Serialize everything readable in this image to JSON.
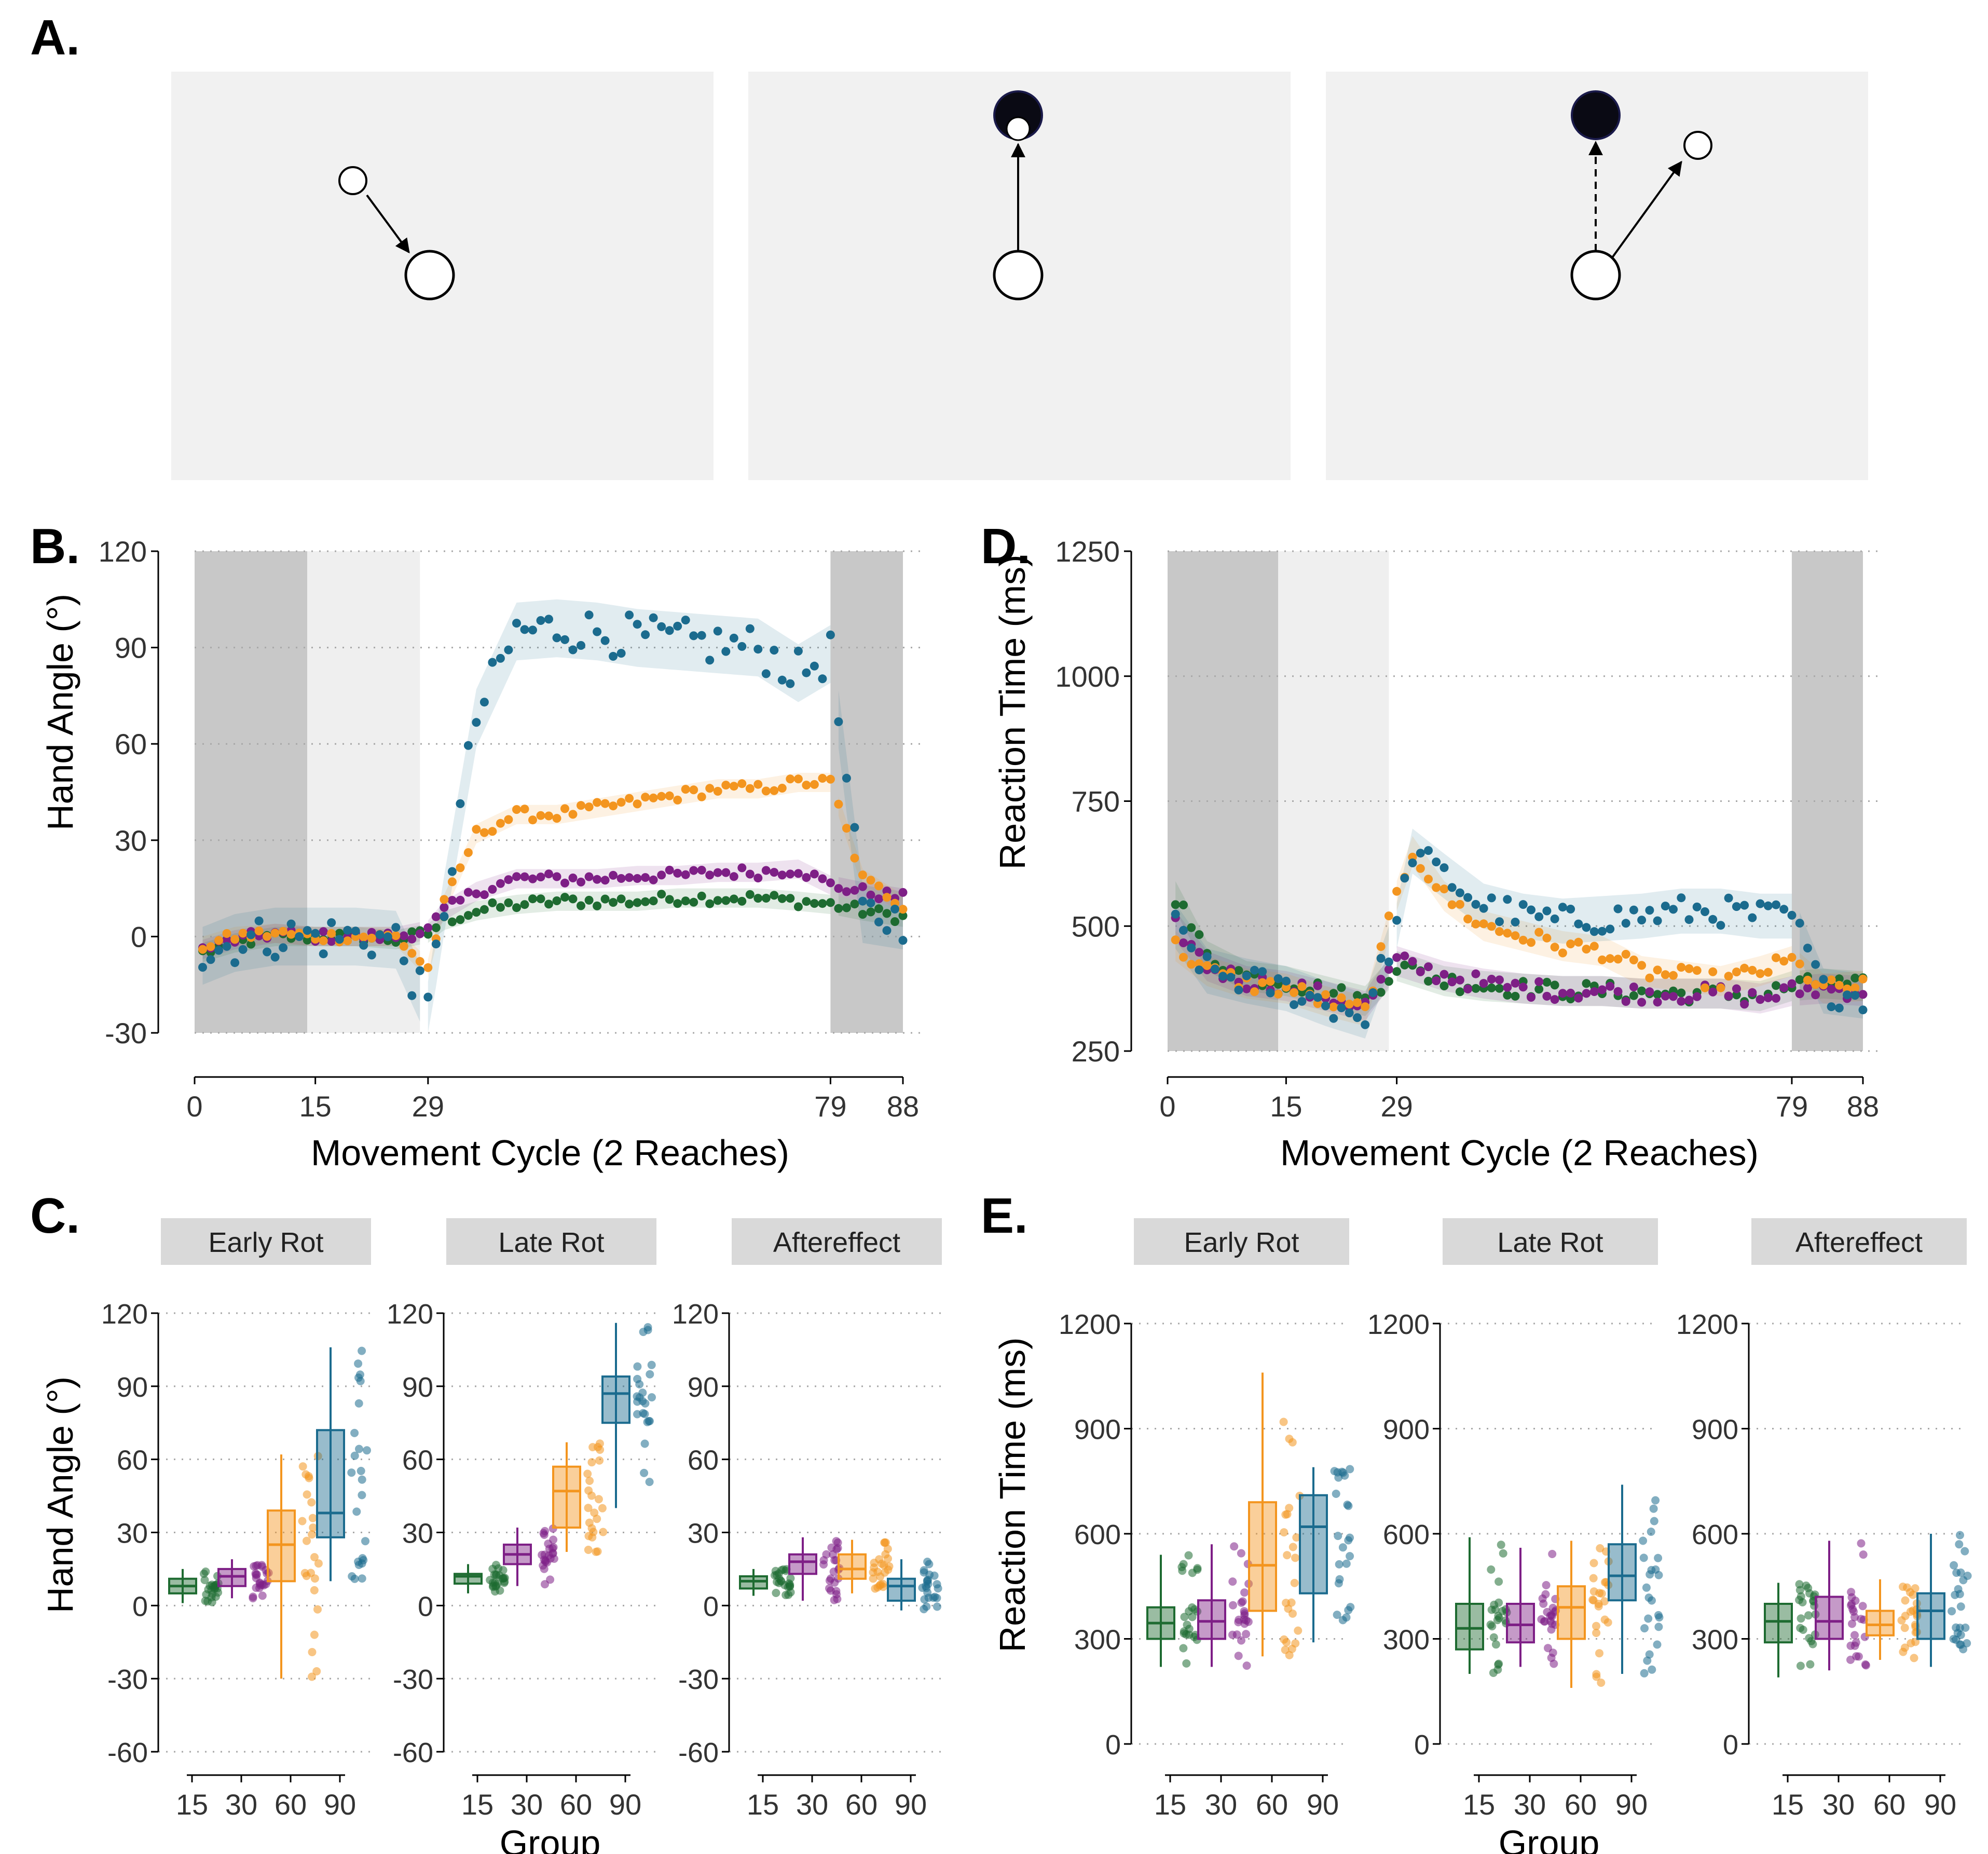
{
  "panels": {
    "A": {
      "letter": "A."
    },
    "B": {
      "letter": "B."
    },
    "C": {
      "letter": "C."
    },
    "D": {
      "letter": "D."
    },
    "E": {
      "letter": "E."
    }
  },
  "colors": {
    "g15": "#1e6b31",
    "g30": "#7e1f86",
    "g60": "#f3951f",
    "g90": "#1b6b8e",
    "no_feedback": "#c8c8c8",
    "veridical": "#efefef",
    "diagram_bg": "#f1f1f1"
  },
  "chart_data": [
    {
      "id": "B",
      "type": "scatter",
      "xlabel": "Movement Cycle (2 Reaches)",
      "ylabel": "Hand Angle (°)",
      "xlim": [
        0,
        88
      ],
      "ylim": [
        -30,
        120
      ],
      "xticks": [
        0,
        15,
        29,
        79,
        88
      ],
      "yticks": [
        -30,
        0,
        30,
        60,
        90,
        120
      ],
      "shaded_blocks": [
        {
          "x": [
            0,
            14
          ],
          "kind": "no_feedback"
        },
        {
          "x": [
            14,
            28
          ],
          "kind": "veridical"
        },
        {
          "x": [
            79,
            88
          ],
          "kind": "no_feedback"
        }
      ],
      "series": [
        {
          "group": "15",
          "color": "#1e6b31",
          "values": [
            [
              1,
              -5
            ],
            [
              5,
              -2
            ],
            [
              10,
              0
            ],
            [
              15,
              0
            ],
            [
              20,
              0
            ],
            [
              25,
              -1
            ],
            [
              29,
              1
            ],
            [
              31,
              5
            ],
            [
              35,
              8
            ],
            [
              40,
              10
            ],
            [
              45,
              11
            ],
            [
              50,
              11
            ],
            [
              55,
              11
            ],
            [
              60,
              12
            ],
            [
              65,
              12
            ],
            [
              70,
              12
            ],
            [
              75,
              11
            ],
            [
              79,
              10
            ],
            [
              83,
              8
            ],
            [
              88,
              6
            ]
          ]
        },
        {
          "group": "30",
          "color": "#7e1f86",
          "values": [
            [
              1,
              -4
            ],
            [
              5,
              -1
            ],
            [
              10,
              1
            ],
            [
              15,
              0
            ],
            [
              20,
              0
            ],
            [
              25,
              0
            ],
            [
              29,
              2
            ],
            [
              31,
              8
            ],
            [
              35,
              14
            ],
            [
              40,
              18
            ],
            [
              45,
              18
            ],
            [
              50,
              18
            ],
            [
              55,
              19
            ],
            [
              60,
              19
            ],
            [
              65,
              20
            ],
            [
              70,
              20
            ],
            [
              75,
              21
            ],
            [
              79,
              16
            ],
            [
              83,
              14
            ],
            [
              88,
              12
            ]
          ]
        },
        {
          "group": "60",
          "color": "#f3951f",
          "values": [
            [
              1,
              -3
            ],
            [
              5,
              0
            ],
            [
              10,
              1
            ],
            [
              15,
              0
            ],
            [
              20,
              0
            ],
            [
              25,
              0
            ],
            [
              29,
              -10
            ],
            [
              31,
              10
            ],
            [
              35,
              32
            ],
            [
              40,
              38
            ],
            [
              45,
              38
            ],
            [
              50,
              40
            ],
            [
              55,
              42
            ],
            [
              60,
              44
            ],
            [
              65,
              46
            ],
            [
              70,
              46
            ],
            [
              75,
              48
            ],
            [
              79,
              48
            ],
            [
              83,
              18
            ],
            [
              88,
              10
            ]
          ]
        },
        {
          "group": "90",
          "color": "#1b6b8e",
          "values": [
            [
              1,
              -6
            ],
            [
              5,
              -2
            ],
            [
              10,
              0
            ],
            [
              15,
              0
            ],
            [
              20,
              0
            ],
            [
              25,
              -1
            ],
            [
              29,
              -23
            ],
            [
              31,
              10
            ],
            [
              35,
              68
            ],
            [
              40,
              95
            ],
            [
              45,
              96
            ],
            [
              50,
              95
            ],
            [
              55,
              93
            ],
            [
              60,
              92
            ],
            [
              65,
              91
            ],
            [
              70,
              90
            ],
            [
              75,
              82
            ],
            [
              79,
              88
            ],
            [
              83,
              7
            ],
            [
              88,
              5
            ]
          ]
        }
      ]
    },
    {
      "id": "D",
      "type": "scatter",
      "xlabel": "Movement Cycle (2 Reaches)",
      "ylabel": "Reaction Time (ms)",
      "xlim": [
        0,
        88
      ],
      "ylim": [
        250,
        1250
      ],
      "xticks": [
        0,
        15,
        29,
        79,
        88
      ],
      "yticks": [
        250,
        500,
        750,
        1000,
        1250
      ],
      "shaded_blocks": [
        {
          "x": [
            0,
            14
          ],
          "kind": "no_feedback"
        },
        {
          "x": [
            14,
            28
          ],
          "kind": "veridical"
        },
        {
          "x": [
            79,
            88
          ],
          "kind": "no_feedback"
        }
      ],
      "series": [
        {
          "group": "15",
          "color": "#1e6b31",
          "values": [
            [
              1,
              560
            ],
            [
              5,
              440
            ],
            [
              10,
              400
            ],
            [
              15,
              390
            ],
            [
              20,
              370
            ],
            [
              25,
              350
            ],
            [
              29,
              420
            ],
            [
              35,
              390
            ],
            [
              40,
              380
            ],
            [
              45,
              375
            ],
            [
              50,
              370
            ],
            [
              55,
              370
            ],
            [
              60,
              365
            ],
            [
              65,
              365
            ],
            [
              70,
              365
            ],
            [
              75,
              360
            ],
            [
              79,
              380
            ],
            [
              83,
              385
            ],
            [
              88,
              380
            ]
          ]
        },
        {
          "group": "30",
          "color": "#7e1f86",
          "values": [
            [
              1,
              500
            ],
            [
              5,
              420
            ],
            [
              10,
              390
            ],
            [
              15,
              380
            ],
            [
              20,
              360
            ],
            [
              25,
              340
            ],
            [
              29,
              430
            ],
            [
              35,
              400
            ],
            [
              40,
              385
            ],
            [
              45,
              375
            ],
            [
              50,
              370
            ],
            [
              55,
              370
            ],
            [
              60,
              365
            ],
            [
              65,
              365
            ],
            [
              70,
              365
            ],
            [
              75,
              355
            ],
            [
              79,
              370
            ],
            [
              83,
              375
            ],
            [
              88,
              370
            ]
          ]
        },
        {
          "group": "60",
          "color": "#f3951f",
          "values": [
            [
              1,
              460
            ],
            [
              5,
              410
            ],
            [
              10,
              385
            ],
            [
              15,
              375
            ],
            [
              20,
              350
            ],
            [
              25,
              330
            ],
            [
              29,
              560
            ],
            [
              31,
              650
            ],
            [
              35,
              560
            ],
            [
              40,
              500
            ],
            [
              45,
              480
            ],
            [
              50,
              460
            ],
            [
              55,
              450
            ],
            [
              60,
              410
            ],
            [
              65,
              400
            ],
            [
              70,
              390
            ],
            [
              75,
              410
            ],
            [
              79,
              430
            ],
            [
              83,
              375
            ],
            [
              88,
              380
            ]
          ]
        },
        {
          "group": "90",
          "color": "#1b6b8e",
          "values": [
            [
              1,
              500
            ],
            [
              5,
              410
            ],
            [
              10,
              390
            ],
            [
              15,
              375
            ],
            [
              20,
              345
            ],
            [
              25,
              320
            ],
            [
              29,
              500
            ],
            [
              31,
              650
            ],
            [
              35,
              600
            ],
            [
              40,
              540
            ],
            [
              45,
              520
            ],
            [
              50,
              510
            ],
            [
              55,
              515
            ],
            [
              60,
              520
            ],
            [
              65,
              530
            ],
            [
              70,
              530
            ],
            [
              75,
              520
            ],
            [
              79,
              520
            ],
            [
              83,
              370
            ],
            [
              88,
              360
            ]
          ]
        }
      ]
    },
    {
      "id": "C",
      "type": "box",
      "ylabel": "Hand Angle (°)",
      "xlabel": "Group",
      "ylim": [
        -60,
        120
      ],
      "yticks": [
        -60,
        -30,
        0,
        30,
        60,
        90,
        120
      ],
      "groups": [
        "15",
        "30",
        "60",
        "90"
      ],
      "facets": [
        {
          "title": "Early Rot",
          "boxes": [
            {
              "min": 1,
              "q1": 5,
              "median": 8,
              "q3": 11,
              "max": 15
            },
            {
              "min": 3,
              "q1": 8,
              "median": 12,
              "q3": 15,
              "max": 19
            },
            {
              "min": -30,
              "q1": 10,
              "median": 25,
              "q3": 39,
              "max": 62
            },
            {
              "min": 10,
              "q1": 28,
              "median": 38,
              "q3": 72,
              "max": 106
            }
          ]
        },
        {
          "title": "Late Rot",
          "boxes": [
            {
              "min": 5,
              "q1": 9,
              "median": 12,
              "q3": 13,
              "max": 17
            },
            {
              "min": 8,
              "q1": 17,
              "median": 21,
              "q3": 25,
              "max": 32
            },
            {
              "min": 22,
              "q1": 32,
              "median": 47,
              "q3": 57,
              "max": 67
            },
            {
              "min": 40,
              "q1": 75,
              "median": 87,
              "q3": 94,
              "max": 116
            }
          ]
        },
        {
          "title": "Aftereffect",
          "boxes": [
            {
              "min": 4,
              "q1": 7,
              "median": 10,
              "q3": 12,
              "max": 15
            },
            {
              "min": 2,
              "q1": 13,
              "median": 18,
              "q3": 21,
              "max": 28
            },
            {
              "min": 5,
              "q1": 11,
              "median": 15,
              "q3": 21,
              "max": 27
            },
            {
              "min": -2,
              "q1": 2,
              "median": 8,
              "q3": 11,
              "max": 19
            }
          ]
        }
      ]
    },
    {
      "id": "E",
      "type": "box",
      "ylabel": "Reaction Time (ms)",
      "xlabel": "Group",
      "ylim": [
        0,
        1200
      ],
      "yticks": [
        0,
        300,
        600,
        900,
        1200
      ],
      "groups": [
        "15",
        "30",
        "60",
        "90"
      ],
      "facets": [
        {
          "title": "Early Rot",
          "boxes": [
            {
              "min": 220,
              "q1": 300,
              "median": 345,
              "q3": 390,
              "max": 540
            },
            {
              "min": 220,
              "q1": 300,
              "median": 350,
              "q3": 410,
              "max": 570
            },
            {
              "min": 250,
              "q1": 380,
              "median": 510,
              "q3": 690,
              "max": 1060
            },
            {
              "min": 290,
              "q1": 430,
              "median": 620,
              "q3": 710,
              "max": 790
            }
          ]
        },
        {
          "title": "Late Rot",
          "boxes": [
            {
              "min": 200,
              "q1": 270,
              "median": 330,
              "q3": 400,
              "max": 590
            },
            {
              "min": 220,
              "q1": 290,
              "median": 340,
              "q3": 400,
              "max": 560
            },
            {
              "min": 160,
              "q1": 300,
              "median": 390,
              "q3": 450,
              "max": 580
            },
            {
              "min": 200,
              "q1": 410,
              "median": 480,
              "q3": 570,
              "max": 740
            }
          ]
        },
        {
          "title": "Aftereffect",
          "boxes": [
            {
              "min": 190,
              "q1": 290,
              "median": 350,
              "q3": 400,
              "max": 460
            },
            {
              "min": 210,
              "q1": 300,
              "median": 350,
              "q3": 420,
              "max": 580
            },
            {
              "min": 240,
              "q1": 310,
              "median": 340,
              "q3": 380,
              "max": 470
            },
            {
              "min": 220,
              "q1": 300,
              "median": 380,
              "q3": 430,
              "max": 600
            }
          ]
        }
      ]
    }
  ]
}
